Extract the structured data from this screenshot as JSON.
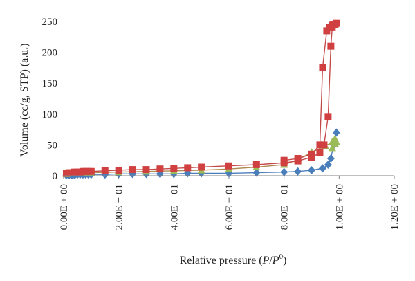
{
  "chart_data": {
    "type": "scatter",
    "title": "",
    "ylabel": "Volume (cc/g, STP) (a.u.)",
    "xlabel": "Relative pressure (P/P0)",
    "xlabel_parts": {
      "prefix": "Relative pressure (",
      "p": "P",
      "slash": "/",
      "p0": "P",
      "sup": "0",
      "suffix": ")"
    },
    "xlim": [
      0,
      1.2
    ],
    "ylim": [
      0,
      250
    ],
    "x_ticks": [
      {
        "value": 0.0,
        "label": "0.00E + 00"
      },
      {
        "value": 0.2,
        "label": "2.00E − 01"
      },
      {
        "value": 0.4,
        "label": "4.00E − 01"
      },
      {
        "value": 0.6,
        "label": "6.00E − 01"
      },
      {
        "value": 0.8,
        "label": "8.00E − 01"
      },
      {
        "value": 1.0,
        "label": "1.00E + 00"
      },
      {
        "value": 1.2,
        "label": "1.20E + 00"
      }
    ],
    "y_ticks": [
      {
        "value": 0,
        "label": "0"
      },
      {
        "value": 50,
        "label": "50"
      },
      {
        "value": 100,
        "label": "100"
      },
      {
        "value": 150,
        "label": "150"
      },
      {
        "value": 200,
        "label": "200"
      },
      {
        "value": 250,
        "label": "250"
      }
    ],
    "grid": false,
    "legend": "none",
    "series": [
      {
        "color": "#d04040",
        "line_color": "#c44a4a",
        "marker": "square",
        "points": [
          [
            0.01,
            4
          ],
          [
            0.02,
            5
          ],
          [
            0.03,
            5
          ],
          [
            0.04,
            6
          ],
          [
            0.05,
            6
          ],
          [
            0.06,
            6
          ],
          [
            0.07,
            7
          ],
          [
            0.08,
            7
          ],
          [
            0.09,
            7
          ],
          [
            0.1,
            7
          ],
          [
            0.15,
            8
          ],
          [
            0.2,
            9
          ],
          [
            0.25,
            10
          ],
          [
            0.3,
            10
          ],
          [
            0.35,
            11
          ],
          [
            0.4,
            12
          ],
          [
            0.45,
            13
          ],
          [
            0.5,
            14
          ],
          [
            0.6,
            16
          ],
          [
            0.7,
            18
          ],
          [
            0.8,
            21
          ],
          [
            0.85,
            24
          ],
          [
            0.9,
            30
          ],
          [
            0.93,
            37
          ],
          [
            0.945,
            50
          ],
          [
            0.96,
            96
          ],
          [
            0.97,
            210
          ],
          [
            0.975,
            240
          ],
          [
            0.985,
            245
          ],
          [
            0.99,
            247
          ],
          [
            0.98,
            245
          ],
          [
            0.975,
            244
          ],
          [
            0.965,
            240
          ],
          [
            0.955,
            235
          ],
          [
            0.94,
            175
          ],
          [
            0.93,
            50
          ],
          [
            0.9,
            35
          ],
          [
            0.85,
            28
          ],
          [
            0.8,
            25
          ]
        ]
      },
      {
        "color": "#9bbb59",
        "line_color": "#b08a50",
        "marker": "triangle",
        "points": [
          [
            0.01,
            3
          ],
          [
            0.03,
            4
          ],
          [
            0.05,
            4
          ],
          [
            0.08,
            5
          ],
          [
            0.1,
            5
          ],
          [
            0.2,
            6
          ],
          [
            0.3,
            7
          ],
          [
            0.4,
            8
          ],
          [
            0.5,
            9
          ],
          [
            0.6,
            11
          ],
          [
            0.7,
            14
          ],
          [
            0.8,
            18
          ],
          [
            0.85,
            26
          ],
          [
            0.9,
            38
          ],
          [
            0.95,
            48
          ],
          [
            0.975,
            55
          ],
          [
            0.985,
            60
          ],
          [
            0.99,
            55
          ],
          [
            0.985,
            52
          ],
          [
            0.975,
            45
          ]
        ]
      },
      {
        "color": "#4a7ebb",
        "line_color": "#4a7ebb",
        "marker": "diamond",
        "points": [
          [
            0.01,
            1
          ],
          [
            0.02,
            1
          ],
          [
            0.03,
            1
          ],
          [
            0.04,
            1
          ],
          [
            0.05,
            2
          ],
          [
            0.06,
            2
          ],
          [
            0.07,
            2
          ],
          [
            0.08,
            2
          ],
          [
            0.09,
            2
          ],
          [
            0.1,
            2
          ],
          [
            0.15,
            2
          ],
          [
            0.2,
            3
          ],
          [
            0.25,
            3
          ],
          [
            0.3,
            3
          ],
          [
            0.35,
            3
          ],
          [
            0.4,
            3
          ],
          [
            0.45,
            4
          ],
          [
            0.5,
            4
          ],
          [
            0.6,
            4
          ],
          [
            0.7,
            5
          ],
          [
            0.8,
            6
          ],
          [
            0.85,
            7
          ],
          [
            0.9,
            9
          ],
          [
            0.94,
            12
          ],
          [
            0.96,
            18
          ],
          [
            0.97,
            28
          ],
          [
            0.98,
            50
          ],
          [
            0.99,
            70
          ]
        ]
      }
    ]
  }
}
